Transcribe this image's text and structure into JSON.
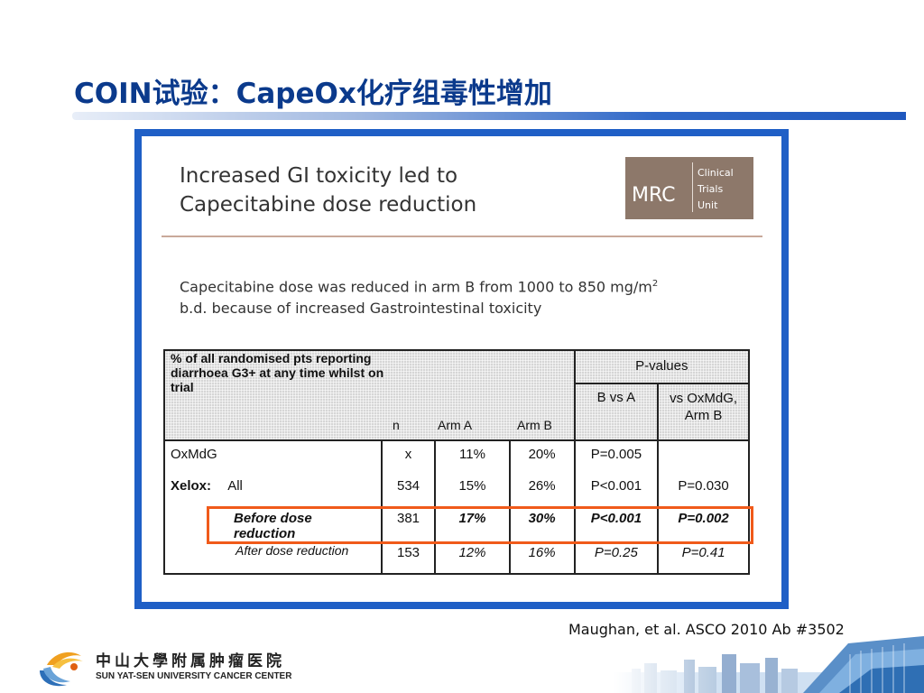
{
  "slide": {
    "title": "COIN试验：CapeOx化疗组毒性增加"
  },
  "panel": {
    "heading": "Increased GI toxicity led to Capecitabine dose reduction",
    "logo": {
      "abbr": "MRC",
      "line1": "Clinical",
      "line2": "Trials",
      "line3": "Unit"
    },
    "note_main": "Capecitabine dose was reduced in arm B from 1000 to 850 mg/m",
    "note_sup": "2",
    "note_tail": "b.d. because of increased Gastrointestinal toxicity"
  },
  "table": {
    "header_main": "% of all randomised pts reporting diarrhoea G3+ at any time whilst on trial",
    "header_pvalues": "P-values",
    "col_n": "n",
    "col_arm_a": "Arm A",
    "col_arm_b": "Arm B",
    "col_b_vs_a": "B vs A",
    "col_vs_oxmdg": "vs OxMdG, Arm B",
    "rows": [
      {
        "group": "OxMdG",
        "sub": "",
        "n": "x",
        "arm_a": "11%",
        "arm_b": "20%",
        "b_vs_a": "P=0.005",
        "vs_oxmdg": ""
      },
      {
        "group": "Xelox:",
        "sub": "All",
        "n": "534",
        "arm_a": "15%",
        "arm_b": "26%",
        "b_vs_a": "P<0.001",
        "vs_oxmdg": "P=0.030"
      },
      {
        "group": "",
        "sub": "Before dose reduction",
        "n": "381",
        "arm_a": "17%",
        "arm_b": "30%",
        "b_vs_a": "P<0.001",
        "vs_oxmdg": "P=0.002"
      },
      {
        "group": "",
        "sub": "After dose reduction",
        "n": "153",
        "arm_a": "12%",
        "arm_b": "16%",
        "b_vs_a": "P=0.25",
        "vs_oxmdg": "P=0.41"
      }
    ]
  },
  "citation": "Maughan, et al. ASCO 2010 Ab #3502",
  "footer": {
    "name_cn": "中山大學附属肿瘤医院",
    "name_en": "SUN YAT-SEN UNIVERSITY CANCER CENTER",
    "logo_icon": "sysucc-logo-icon",
    "skyline_icon": "city-skyline-icon"
  },
  "colors": {
    "title": "#0b3a8c",
    "panel_border": "#1f5fc6",
    "highlight": "#f05a1a",
    "mrc_logo": "#8d786a"
  }
}
